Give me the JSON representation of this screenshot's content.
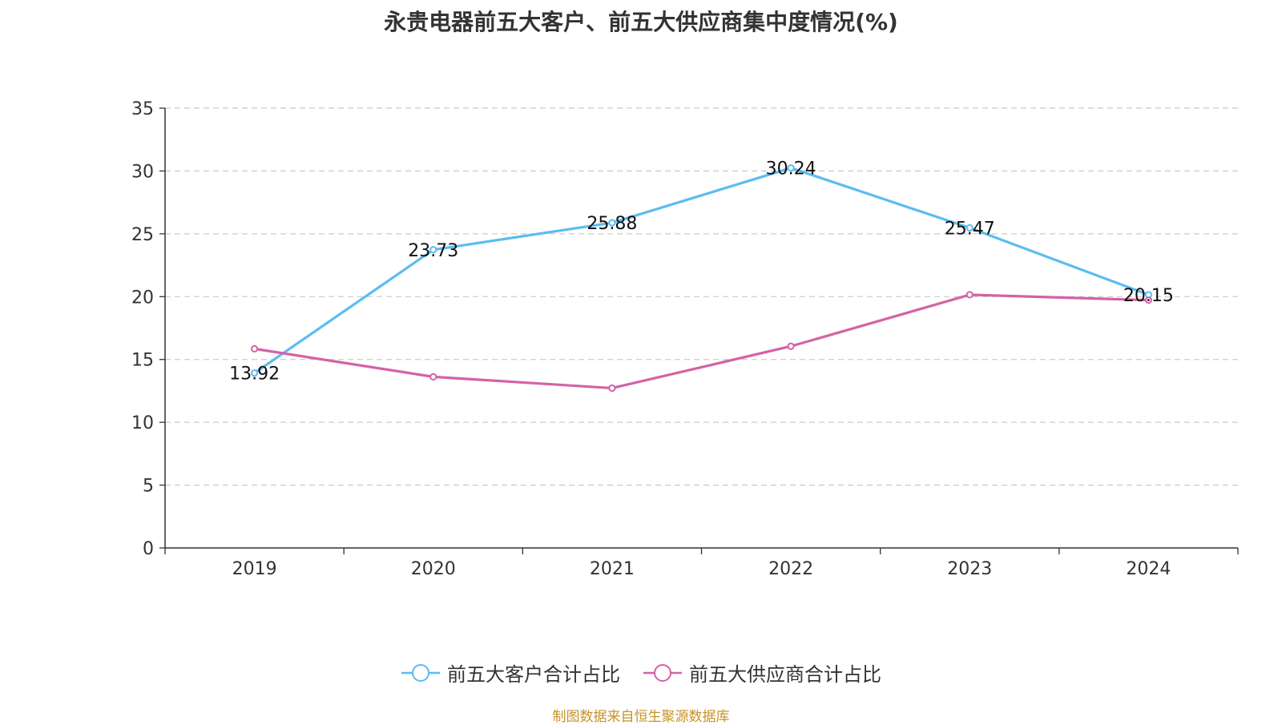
{
  "chart_data": {
    "type": "line",
    "title": "永贵电器前五大客户、前五大供应商集中度情况(%)",
    "categories": [
      "2019",
      "2020",
      "2021",
      "2022",
      "2023",
      "2024"
    ],
    "ylim": [
      0,
      35
    ],
    "yticks": [
      0,
      5,
      10,
      15,
      20,
      25,
      30,
      35
    ],
    "grid": true,
    "legend_position": "bottom",
    "series": [
      {
        "name": "前五大客户合计占比",
        "color": "#5bbcf0",
        "values": [
          13.92,
          23.73,
          25.88,
          30.24,
          25.47,
          20.15
        ],
        "labels": [
          "13.92",
          "23.73",
          "25.88",
          "30.24",
          "25.47",
          "20.15"
        ],
        "show_labels": true
      },
      {
        "name": "前五大供应商合计占比",
        "color": "#d462a6",
        "values": [
          15.85,
          13.62,
          12.72,
          16.05,
          20.15,
          19.72
        ],
        "show_labels": false
      }
    ]
  },
  "footer": {
    "source": "制图数据来自恒生聚源数据库"
  }
}
